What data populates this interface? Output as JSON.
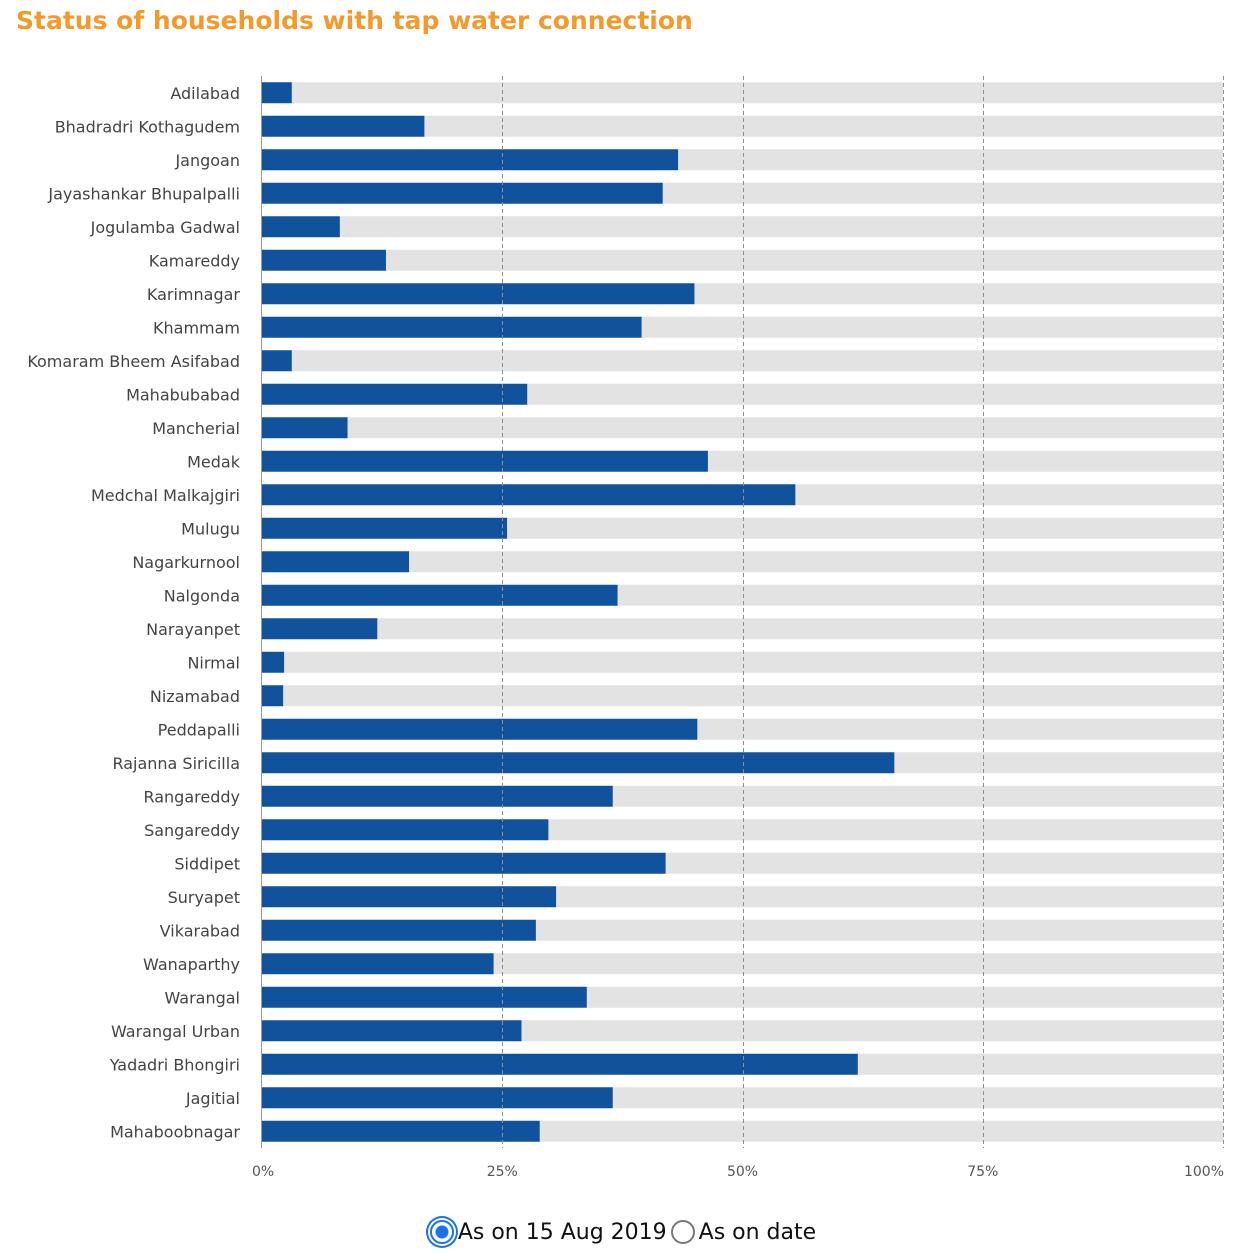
{
  "header": {
    "title": "Status of households with tap water connection"
  },
  "legend": {
    "options": [
      {
        "label": "As on 15 Aug 2019",
        "selected": true
      },
      {
        "label": "As on date",
        "selected": false
      }
    ]
  },
  "colors": {
    "bar": "#10529b",
    "track": "#e3e3e3",
    "title": "#f39a2b",
    "accent": "#1a73e8"
  },
  "chart_data": {
    "type": "bar",
    "orientation": "horizontal",
    "stacked_to_100": true,
    "title": "Status of households with tap water connection",
    "categories": [
      "Adilabad",
      "Bhadradri Kothagudem",
      "Jangoan",
      "Jayashankar Bhupalpalli",
      "Jogulamba Gadwal",
      "Kamareddy",
      "Karimnagar",
      "Khammam",
      "Komaram Bheem Asifabad",
      "Mahabubabad",
      "Mancherial",
      "Medak",
      "Medchal Malkajgiri",
      "Mulugu",
      "Nagarkurnool",
      "Nalgonda",
      "Narayanpet",
      "Nirmal",
      "Nizamabad",
      "Peddapalli",
      "Rajanna Siricilla",
      "Rangareddy",
      "Sangareddy",
      "Siddipet",
      "Suryapet",
      "Vikarabad",
      "Wanaparthy",
      "Warangal",
      "Warangal Urban",
      "Yadadri Bhongiri",
      "Jagitial",
      "Mahaboobnagar"
    ],
    "series": [
      {
        "values": [
          3.1,
          16.9,
          43.3,
          41.7,
          8.1,
          12.9,
          45.0,
          39.5,
          3.1,
          27.6,
          8.9,
          46.4,
          55.5,
          25.5,
          15.3,
          37.0,
          12.0,
          2.3,
          2.2,
          45.3,
          65.8,
          36.5,
          29.8,
          42.0,
          30.6,
          28.5,
          24.1,
          33.8,
          27.0,
          62.0,
          36.5,
          28.9
        ]
      },
      {
        "values": [
          96.9,
          83.1,
          56.7,
          58.3,
          91.9,
          87.1,
          55.0,
          60.5,
          96.9,
          72.4,
          91.1,
          53.6,
          44.5,
          74.5,
          84.7,
          63.0,
          88.0,
          97.7,
          97.8,
          54.7,
          34.2,
          63.5,
          70.2,
          58.0,
          69.4,
          71.5,
          75.9,
          66.2,
          73.0,
          38.0,
          63.5,
          71.1
        ]
      }
    ],
    "x_ticks": [
      "0%",
      "25%",
      "50%",
      "75%",
      "100%"
    ],
    "xlim": [
      0,
      100
    ],
    "grid": "dashed-vertical"
  }
}
